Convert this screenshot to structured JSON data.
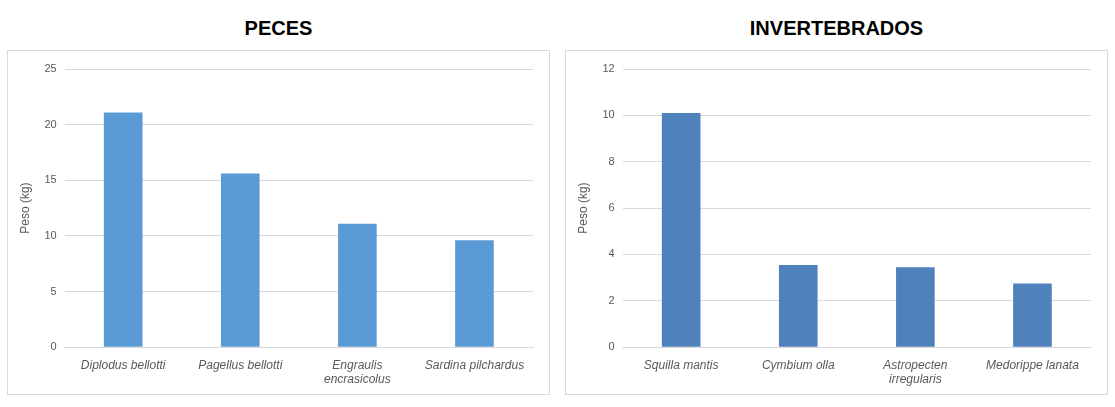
{
  "chart_data": [
    {
      "type": "bar",
      "title": "PECES",
      "y_label": "Peso (kg)",
      "categories": [
        "Diplodus bellotti",
        "Pagellus bellotti",
        "Engraulis encrasicolus",
        "Sardina pilchardus"
      ],
      "values": [
        21.1,
        15.6,
        11.1,
        9.6
      ],
      "color": "#5b9bd5",
      "ylim": [
        0,
        25
      ],
      "yticks": [
        0,
        5,
        10,
        15,
        20,
        25
      ],
      "grid": true
    },
    {
      "type": "bar",
      "title": "INVERTEBRADOS",
      "y_label": "Peso (kg)",
      "categories": [
        "Squilla mantis",
        "Cymbium olla",
        "Astropecten irregularis",
        "Medorippe lanata"
      ],
      "values": [
        10.1,
        3.55,
        3.45,
        2.75
      ],
      "color": "#4f81bd",
      "ylim": [
        0,
        12
      ],
      "yticks": [
        0,
        2,
        4,
        6,
        8,
        10,
        12
      ],
      "grid": true
    }
  ]
}
